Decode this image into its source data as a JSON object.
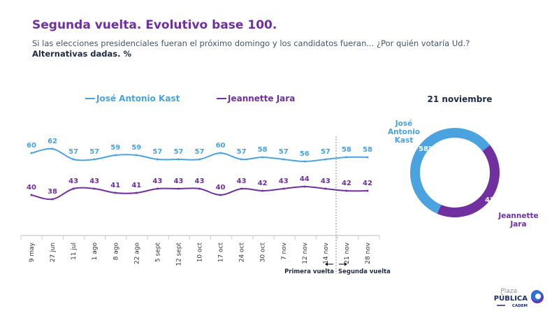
{
  "header": {
    "title": "Segunda vuelta. Evolutivo base 100.",
    "subtitle": "Si las elecciones presidenciales fueran el próximo domingo y los candidatos fueran... ¿Por quién votaría Ud.?",
    "subtitle2": "Alternativas dadas. %"
  },
  "chart_data": [
    {
      "type": "line",
      "categories": [
        "9 may",
        "27 jun",
        "11 jul",
        "1 ago",
        "8 ago",
        "22 ago",
        "5 sept",
        "12 sept",
        "10 oct",
        "17 oct",
        "24 oct",
        "30 oct",
        "7 nov",
        "12 nov",
        "14 nov",
        "21 nov",
        "28 nov"
      ],
      "series": [
        {
          "name": "José Antonio Kast",
          "color": "#4aa3df",
          "values": [
            60,
            62,
            57,
            57,
            59,
            59,
            57,
            57,
            57,
            60,
            57,
            58,
            57,
            56,
            57,
            58,
            58
          ]
        },
        {
          "name": "Jeannette Jara",
          "color": "#7030a0",
          "values": [
            40,
            38,
            43,
            43,
            41,
            41,
            43,
            43,
            43,
            40,
            43,
            42,
            43,
            44,
            43,
            42,
            42
          ]
        }
      ],
      "legend": "top",
      "grid": false,
      "annotations": {
        "left_label": "Primera vuelta",
        "right_label": "Segunda vuelta",
        "divider_between": [
          "14 nov",
          "21 nov"
        ]
      }
    },
    {
      "type": "pie",
      "title": "21 noviembre",
      "slices": [
        {
          "label": "José Antonio Kast",
          "value": 58,
          "display": "58%",
          "color": "#4aa3df"
        },
        {
          "label": "Jeannette Jara",
          "value": 42,
          "display": "42%",
          "color": "#7030a0"
        }
      ]
    }
  ],
  "logo": {
    "line1": "Plaza",
    "line2": "PÚBLICA",
    "line3": "CADEM"
  }
}
